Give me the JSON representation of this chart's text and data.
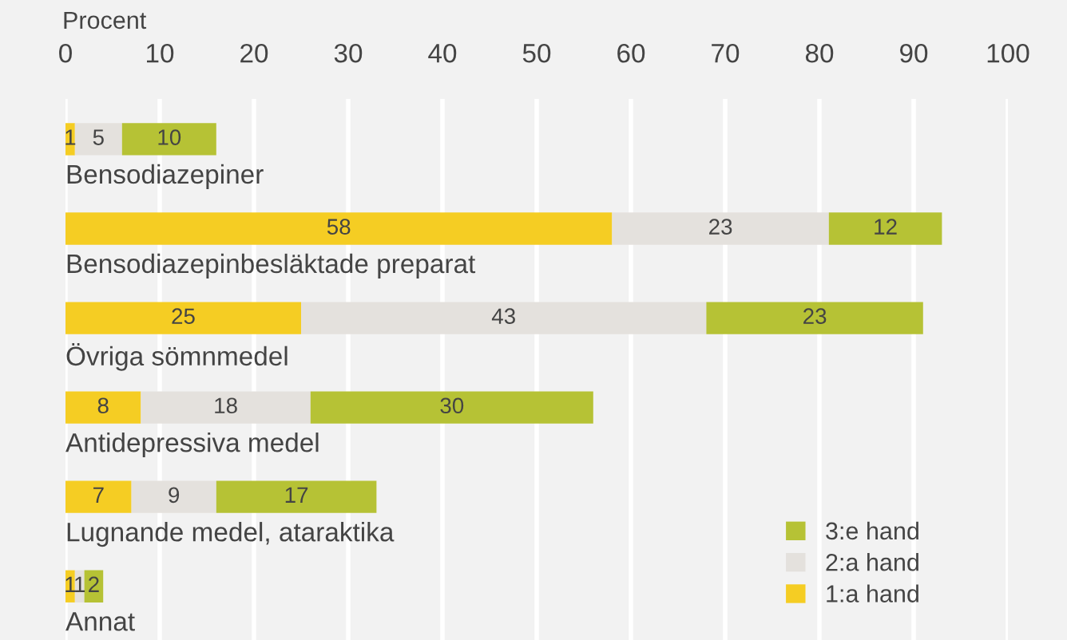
{
  "chart_data": {
    "type": "bar",
    "orientation": "horizontal",
    "stacked": true,
    "data_labels": true,
    "xlabel": "Procent",
    "categories": [
      "Bensodiazepiner",
      "Bensodiazepinbesläktade preparat",
      "Övriga sömnmedel",
      "Antidepressiva medel",
      "Lugnande medel, ataraktika",
      "Annat"
    ],
    "series": [
      {
        "name": "1:a hand",
        "color": "#f5cd23",
        "values": [
          1,
          58,
          25,
          8,
          7,
          1
        ]
      },
      {
        "name": "2:a hand",
        "color": "#e4e1dd",
        "values": [
          5,
          23,
          43,
          18,
          9,
          1
        ]
      },
      {
        "name": "3:e hand",
        "color": "#b6c235",
        "values": [
          10,
          12,
          23,
          30,
          17,
          2
        ]
      }
    ],
    "xlim": [
      0,
      100
    ],
    "xticks": [
      0,
      10,
      20,
      30,
      40,
      50,
      60,
      70,
      80,
      90,
      100
    ],
    "grid": "x",
    "legend": "bottom right"
  }
}
